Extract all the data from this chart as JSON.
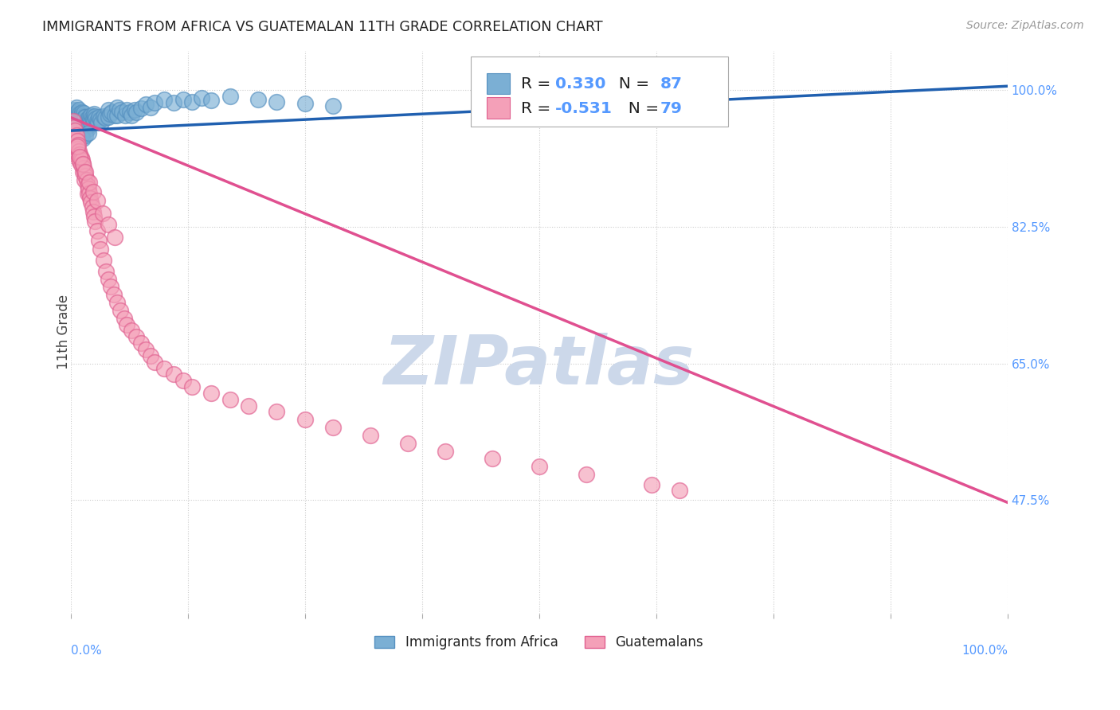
{
  "title": "IMMIGRANTS FROM AFRICA VS GUATEMALAN 11TH GRADE CORRELATION CHART",
  "source": "Source: ZipAtlas.com",
  "ylabel": "11th Grade",
  "ytick_values": [
    1.0,
    0.825,
    0.65,
    0.475
  ],
  "blue_color": "#7bafd4",
  "blue_edge_color": "#5590c0",
  "pink_color": "#f4a0b8",
  "pink_edge_color": "#e06090",
  "trend_blue_color": "#2060b0",
  "trend_pink_color": "#e05090",
  "watermark_color": "#ccd8ea",
  "background_color": "#ffffff",
  "grid_color": "#cccccc",
  "title_color": "#222222",
  "axis_label_color": "#5599ff",
  "blue_scatter_x": [
    0.003,
    0.004,
    0.005,
    0.005,
    0.006,
    0.006,
    0.007,
    0.007,
    0.008,
    0.008,
    0.009,
    0.009,
    0.01,
    0.01,
    0.01,
    0.011,
    0.011,
    0.012,
    0.012,
    0.013,
    0.013,
    0.014,
    0.014,
    0.015,
    0.015,
    0.016,
    0.016,
    0.017,
    0.017,
    0.018,
    0.018,
    0.019,
    0.02,
    0.02,
    0.021,
    0.022,
    0.022,
    0.023,
    0.024,
    0.025,
    0.025,
    0.026,
    0.027,
    0.028,
    0.029,
    0.03,
    0.032,
    0.033,
    0.035,
    0.037,
    0.04,
    0.04,
    0.042,
    0.044,
    0.047,
    0.05,
    0.05,
    0.052,
    0.055,
    0.058,
    0.06,
    0.063,
    0.065,
    0.068,
    0.07,
    0.075,
    0.08,
    0.085,
    0.09,
    0.1,
    0.11,
    0.12,
    0.13,
    0.14,
    0.15,
    0.17,
    0.2,
    0.22,
    0.25,
    0.28,
    0.005,
    0.007,
    0.009,
    0.011,
    0.013,
    0.016,
    0.019
  ],
  "blue_scatter_y": [
    0.965,
    0.97,
    0.975,
    0.96,
    0.968,
    0.978,
    0.972,
    0.962,
    0.97,
    0.958,
    0.975,
    0.965,
    0.97,
    0.96,
    0.952,
    0.968,
    0.958,
    0.972,
    0.963,
    0.967,
    0.957,
    0.971,
    0.961,
    0.966,
    0.956,
    0.965,
    0.955,
    0.962,
    0.952,
    0.96,
    0.95,
    0.958,
    0.965,
    0.955,
    0.962,
    0.968,
    0.958,
    0.965,
    0.962,
    0.97,
    0.96,
    0.967,
    0.963,
    0.96,
    0.958,
    0.965,
    0.962,
    0.958,
    0.967,
    0.964,
    0.975,
    0.965,
    0.97,
    0.972,
    0.968,
    0.978,
    0.968,
    0.975,
    0.972,
    0.968,
    0.975,
    0.972,
    0.968,
    0.975,
    0.972,
    0.977,
    0.982,
    0.978,
    0.984,
    0.988,
    0.984,
    0.988,
    0.985,
    0.99,
    0.987,
    0.992,
    0.988,
    0.985,
    0.983,
    0.98,
    0.94,
    0.945,
    0.935,
    0.94,
    0.938,
    0.942,
    0.945
  ],
  "pink_scatter_x": [
    0.003,
    0.004,
    0.005,
    0.005,
    0.006,
    0.007,
    0.007,
    0.008,
    0.008,
    0.009,
    0.009,
    0.01,
    0.01,
    0.011,
    0.011,
    0.012,
    0.013,
    0.013,
    0.014,
    0.015,
    0.015,
    0.016,
    0.017,
    0.018,
    0.018,
    0.019,
    0.02,
    0.021,
    0.022,
    0.023,
    0.024,
    0.025,
    0.026,
    0.028,
    0.03,
    0.032,
    0.035,
    0.038,
    0.04,
    0.043,
    0.046,
    0.05,
    0.053,
    0.057,
    0.06,
    0.065,
    0.07,
    0.075,
    0.08,
    0.085,
    0.09,
    0.1,
    0.11,
    0.12,
    0.13,
    0.15,
    0.17,
    0.19,
    0.22,
    0.25,
    0.28,
    0.32,
    0.36,
    0.4,
    0.45,
    0.5,
    0.55,
    0.62,
    0.65,
    0.007,
    0.01,
    0.013,
    0.016,
    0.02,
    0.024,
    0.028,
    0.034,
    0.04,
    0.047
  ],
  "pink_scatter_y": [
    0.96,
    0.952,
    0.948,
    0.938,
    0.942,
    0.935,
    0.925,
    0.93,
    0.918,
    0.922,
    0.912,
    0.918,
    0.908,
    0.914,
    0.904,
    0.91,
    0.905,
    0.895,
    0.9,
    0.895,
    0.885,
    0.89,
    0.885,
    0.878,
    0.868,
    0.874,
    0.868,
    0.862,
    0.856,
    0.85,
    0.844,
    0.838,
    0.832,
    0.82,
    0.808,
    0.796,
    0.782,
    0.768,
    0.758,
    0.748,
    0.738,
    0.728,
    0.718,
    0.708,
    0.7,
    0.692,
    0.684,
    0.676,
    0.668,
    0.66,
    0.652,
    0.644,
    0.636,
    0.628,
    0.62,
    0.612,
    0.604,
    0.596,
    0.588,
    0.578,
    0.568,
    0.558,
    0.548,
    0.538,
    0.528,
    0.518,
    0.508,
    0.495,
    0.488,
    0.928,
    0.915,
    0.905,
    0.895,
    0.882,
    0.87,
    0.858,
    0.842,
    0.828,
    0.812
  ],
  "blue_trend_x": [
    0.0,
    1.0
  ],
  "blue_trend_y": [
    0.948,
    1.005
  ],
  "pink_trend_x": [
    0.0,
    1.0
  ],
  "pink_trend_y": [
    0.965,
    0.472
  ],
  "xlim": [
    0.0,
    1.0
  ],
  "ylim": [
    0.33,
    1.05
  ],
  "legend_R_blue": "0.330",
  "legend_N_blue": "87",
  "legend_R_pink": "-0.531",
  "legend_N_pink": "79"
}
